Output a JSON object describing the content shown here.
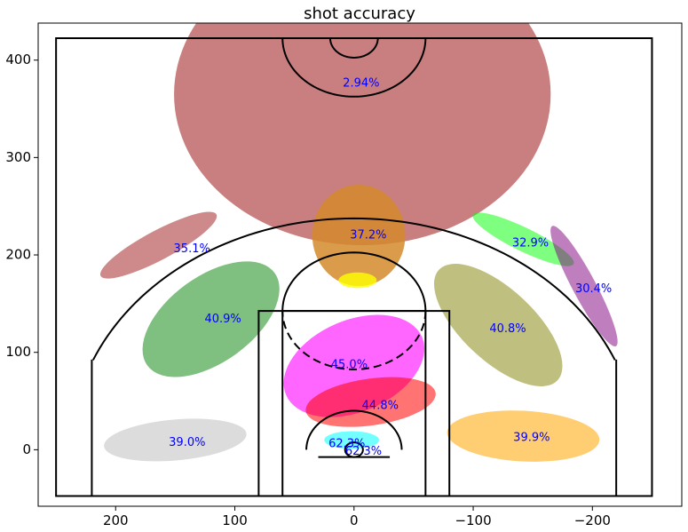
{
  "chart_data": {
    "type": "scatter",
    "title": "shot accuracy",
    "xlabel": "",
    "ylabel": "",
    "xlim": [
      265,
      -275
    ],
    "ylim": [
      -58,
      438
    ],
    "x_ticks": [
      200,
      100,
      0,
      -100,
      -200
    ],
    "x_tick_labels": [
      "200",
      "100",
      "0",
      "−100",
      "−200"
    ],
    "y_ticks": [
      0,
      100,
      200,
      300,
      400
    ],
    "y_tick_labels": [
      "0",
      "100",
      "200",
      "300",
      "400"
    ],
    "grid": false,
    "zones": [
      {
        "label": "2.94%",
        "x": -7,
        "y": 365,
        "rx": 158,
        "ry": 155,
        "angle": 0,
        "color": "#a52a2a",
        "opacity": 0.6,
        "label_x": -6,
        "label_y": 376
      },
      {
        "label": "37.2%",
        "x": -4,
        "y": 220,
        "rx": 39,
        "ry": 52,
        "angle": 0,
        "color": "#d38a2b",
        "opacity": 0.85,
        "label_x": -12,
        "label_y": 220
      },
      {
        "label": "",
        "x": -3,
        "y": 174,
        "rx": 16,
        "ry": 8,
        "angle": 0,
        "color": "#ffff00",
        "opacity": 0.8,
        "label_x": -3,
        "label_y": 174
      },
      {
        "label": "35.1%",
        "x": 164,
        "y": 210,
        "rx": 55,
        "ry": 15,
        "angle": 28,
        "color": "#a52a2a",
        "opacity": 0.55,
        "label_x": 136,
        "label_y": 206
      },
      {
        "label": "40.9%",
        "x": 120,
        "y": 134,
        "rx": 66,
        "ry": 44,
        "angle": 36,
        "color": "#008000",
        "opacity": 0.5,
        "label_x": 110,
        "label_y": 134
      },
      {
        "label": "32.9%",
        "x": -142,
        "y": 216,
        "rx": 47,
        "ry": 12,
        "angle": -26,
        "color": "#00ff00",
        "opacity": 0.5,
        "label_x": -148,
        "label_y": 212
      },
      {
        "label": "30.4%",
        "x": -193,
        "y": 168,
        "rx": 57,
        "ry": 12,
        "angle": -62,
        "color": "#800080",
        "opacity": 0.5,
        "label_x": -201,
        "label_y": 165
      },
      {
        "label": "40.8%",
        "x": -121,
        "y": 128,
        "rx": 68,
        "ry": 37,
        "angle": -43,
        "color": "#808000",
        "opacity": 0.5,
        "label_x": -129,
        "label_y": 124
      },
      {
        "label": "45.0%",
        "x": 0,
        "y": 86,
        "rx": 62,
        "ry": 47,
        "angle": 23,
        "color": "#ff00ff",
        "opacity": 0.6,
        "label_x": 4,
        "label_y": 87
      },
      {
        "label": "44.8%",
        "x": -14,
        "y": 49,
        "rx": 55,
        "ry": 24,
        "angle": 8,
        "color": "#ff0000",
        "opacity": 0.55,
        "label_x": -22,
        "label_y": 45
      },
      {
        "label": "39.0%",
        "x": 150,
        "y": 10,
        "rx": 60,
        "ry": 21,
        "angle": 5,
        "color": "#c0c0c0",
        "opacity": 0.55,
        "label_x": 140,
        "label_y": 7
      },
      {
        "label": "39.9%",
        "x": -142,
        "y": 14,
        "rx": 64,
        "ry": 26,
        "angle": -3,
        "color": "#ffa500",
        "opacity": 0.55,
        "label_x": -149,
        "label_y": 12
      },
      {
        "label": "62.3%",
        "x": 2,
        "y": 10,
        "rx": 23,
        "ry": 9,
        "angle": 0,
        "color": "#00ffff",
        "opacity": 0.55,
        "label_x": 6,
        "label_y": 6
      },
      {
        "label": "62.3%",
        "x": -8,
        "y": 1,
        "rx": 0,
        "ry": 0,
        "angle": 0,
        "color": "#00ffff",
        "opacity": 0,
        "label_x": -8,
        "label_y": -2
      }
    ]
  }
}
